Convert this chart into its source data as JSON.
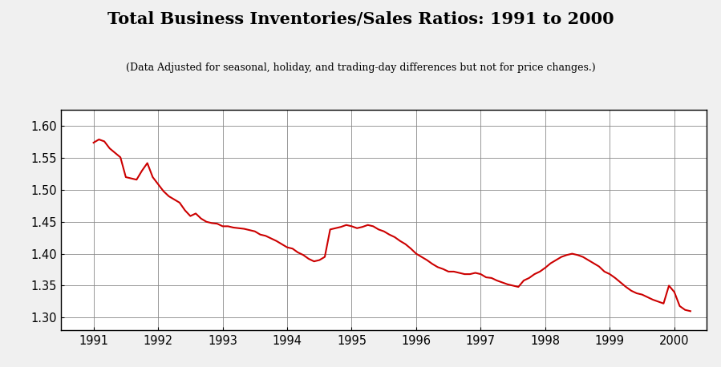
{
  "title": "Total Business Inventories/Sales Ratios: 1991 to 2000",
  "subtitle": "(Data Adjusted for seasonal, holiday, and trading-day differences but not for price changes.)",
  "line_color": "#cc0000",
  "line_width": 1.5,
  "background_color": "#f0f0f0",
  "plot_bg_color": "#ffffff",
  "ylim": [
    1.28,
    1.625
  ],
  "yticks": [
    1.3,
    1.35,
    1.4,
    1.45,
    1.5,
    1.55,
    1.6
  ],
  "xtick_labels": [
    "1991",
    "1992",
    "1993",
    "1994",
    "1995",
    "1996",
    "1997",
    "1998",
    "1999",
    "2000"
  ],
  "values": [
    1.574,
    1.579,
    1.576,
    1.565,
    1.558,
    1.551,
    1.52,
    1.518,
    1.516,
    1.53,
    1.542,
    1.52,
    1.509,
    1.498,
    1.49,
    1.485,
    1.48,
    1.468,
    1.459,
    1.463,
    1.455,
    1.45,
    1.448,
    1.447,
    1.443,
    1.443,
    1.441,
    1.44,
    1.439,
    1.437,
    1.435,
    1.43,
    1.428,
    1.424,
    1.42,
    1.415,
    1.41,
    1.408,
    1.402,
    1.398,
    1.392,
    1.388,
    1.39,
    1.395,
    1.438,
    1.44,
    1.442,
    1.445,
    1.443,
    1.44,
    1.442,
    1.445,
    1.443,
    1.438,
    1.435,
    1.43,
    1.426,
    1.42,
    1.415,
    1.408,
    1.4,
    1.395,
    1.39,
    1.384,
    1.379,
    1.376,
    1.372,
    1.372,
    1.37,
    1.368,
    1.368,
    1.37,
    1.368,
    1.363,
    1.362,
    1.358,
    1.355,
    1.352,
    1.35,
    1.348,
    1.358,
    1.362,
    1.368,
    1.372,
    1.378,
    1.385,
    1.39,
    1.395,
    1.398,
    1.4,
    1.398,
    1.395,
    1.39,
    1.385,
    1.38,
    1.372,
    1.368,
    1.362,
    1.355,
    1.348,
    1.342,
    1.338,
    1.336,
    1.332,
    1.328,
    1.325,
    1.322,
    1.35,
    1.34,
    1.318,
    1.312,
    1.31
  ]
}
